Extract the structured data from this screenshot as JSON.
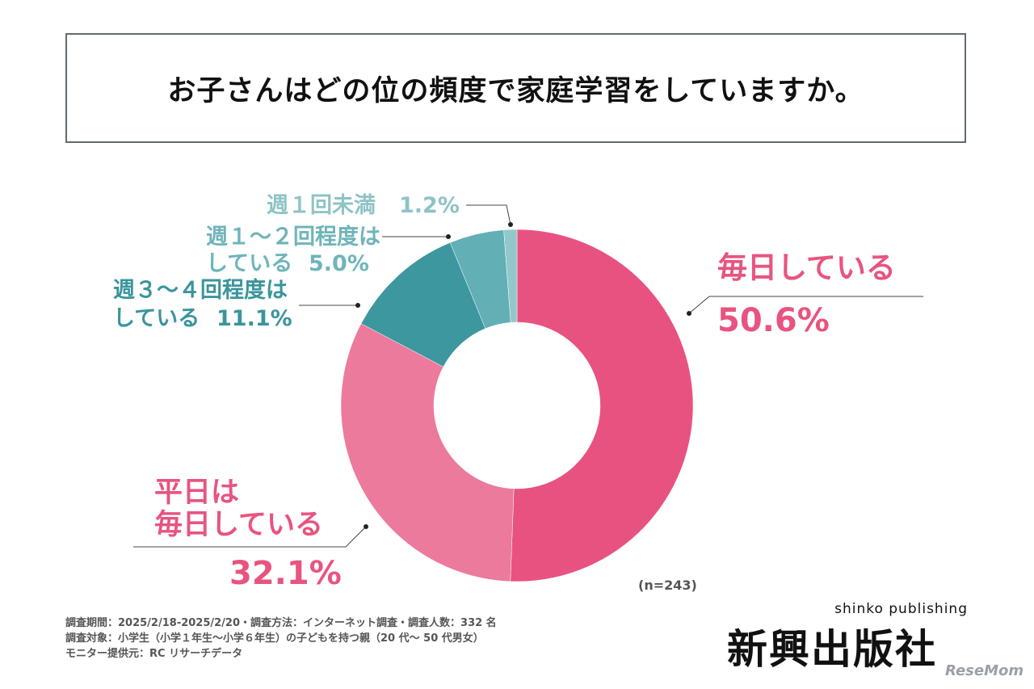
{
  "title": "お子さんはどの位の頻度で家庭学習をしていますか。",
  "chart_data": {
    "type": "pie",
    "title": "お子さんはどの位の頻度で家庭学習をしていますか。",
    "slices": [
      {
        "label_lines": [
          "毎日している"
        ],
        "value": 50.6,
        "value_text": "50.6%",
        "color": "#e85281"
      },
      {
        "label_lines": [
          "平日は",
          "毎日している"
        ],
        "value": 32.1,
        "value_text": "32.1%",
        "color": "#ec7a9c"
      },
      {
        "label_lines": [
          "週３～４回程度は",
          "している"
        ],
        "value": 11.1,
        "value_text": "11.1%",
        "color": "#3c979f"
      },
      {
        "label_lines": [
          "週１～２回程度は",
          "している"
        ],
        "value": 5.0,
        "value_text": "5.0%",
        "color": "#62afb5"
      },
      {
        "label_lines": [
          "週１回未満"
        ],
        "value": 1.2,
        "value_text": "1.2%",
        "color": "#92c8cb"
      }
    ],
    "sample_size": "(n=243)"
  },
  "labels": {
    "mainichi": "毎日している",
    "mainichi_pct": "50.6%",
    "heijitsu_1": "平日は",
    "heijitsu_2": "毎日している",
    "heijitsu_pct": "32.1%",
    "w34_1": "週３～４回程度は",
    "w34_2": "している",
    "w34_pct": "11.1%",
    "w12_1": "週１～２回程度は",
    "w12_2": "している",
    "w12_pct": "5.0%",
    "w1_label": "週１回未満",
    "w1_pct": "1.2%"
  },
  "notes": [
    "調査期間：2025/2/18-2025/2/20・調査方法：インターネット調査・調査人数：332 名",
    "調査対象：小学生（小学１年生～小学６年生）の子どもを持つ親（20 代～ 50 代男女）",
    "モニター提供元：RC リサーチデータ"
  ],
  "logo": {
    "en": "shinko publishing",
    "jp": "新興出版社"
  },
  "watermark": "ReseMom"
}
